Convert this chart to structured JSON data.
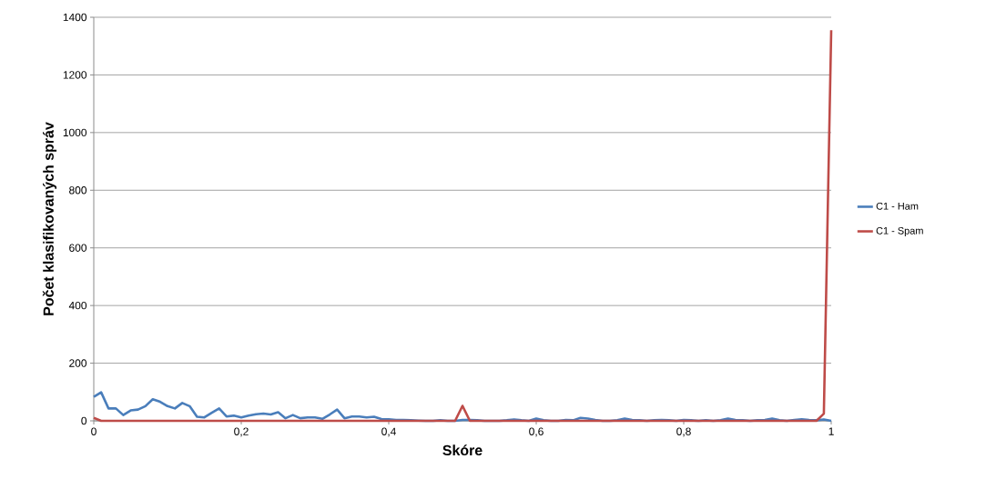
{
  "chart_data": {
    "type": "line",
    "xlabel": "Skóre",
    "ylabel": "Počet klasifikovaných správ",
    "x": [
      0,
      0.01,
      0.02,
      0.03,
      0.04,
      0.05,
      0.06,
      0.07,
      0.08,
      0.09,
      0.1,
      0.11,
      0.12,
      0.13,
      0.14,
      0.15,
      0.16,
      0.17,
      0.18,
      0.19,
      0.2,
      0.21,
      0.22,
      0.23,
      0.24,
      0.25,
      0.26,
      0.27,
      0.28,
      0.29,
      0.3,
      0.31,
      0.32,
      0.33,
      0.34,
      0.35,
      0.36,
      0.37,
      0.38,
      0.39,
      0.4,
      0.41,
      0.42,
      0.43,
      0.44,
      0.45,
      0.46,
      0.47,
      0.48,
      0.49,
      0.5,
      0.51,
      0.52,
      0.53,
      0.54,
      0.55,
      0.56,
      0.57,
      0.58,
      0.59,
      0.6,
      0.61,
      0.62,
      0.63,
      0.64,
      0.65,
      0.66,
      0.67,
      0.68,
      0.69,
      0.7,
      0.71,
      0.72,
      0.73,
      0.74,
      0.75,
      0.76,
      0.77,
      0.78,
      0.79,
      0.8,
      0.81,
      0.82,
      0.83,
      0.84,
      0.85,
      0.86,
      0.87,
      0.88,
      0.89,
      0.9,
      0.91,
      0.92,
      0.93,
      0.94,
      0.95,
      0.96,
      0.97,
      0.98,
      0.99,
      1
    ],
    "series": [
      {
        "name": "C1 - Ham",
        "color": "#4a7ebb",
        "values": [
          83,
          99,
          43,
          43,
          20,
          36,
          39,
          51,
          75,
          66,
          51,
          43,
          62,
          51,
          14,
          12,
          28,
          43,
          15,
          18,
          12,
          18,
          23,
          25,
          22,
          30,
          9,
          20,
          9,
          12,
          12,
          7,
          22,
          39,
          9,
          15,
          15,
          12,
          14,
          6,
          5,
          3,
          3,
          2,
          1,
          0,
          0,
          2,
          0,
          0,
          3,
          3,
          2,
          0,
          0,
          0,
          2,
          5,
          2,
          0,
          8,
          2,
          0,
          0,
          3,
          2,
          10,
          8,
          3,
          0,
          0,
          2,
          8,
          3,
          2,
          0,
          2,
          3,
          2,
          0,
          3,
          2,
          0,
          2,
          0,
          2,
          8,
          3,
          2,
          0,
          2,
          3,
          8,
          2,
          0,
          3,
          5,
          3,
          2,
          5,
          0
        ]
      },
      {
        "name": "C1 - Spam",
        "color": "#be4b48",
        "values": [
          10,
          0,
          0,
          0,
          0,
          0,
          0,
          0,
          0,
          0,
          0,
          0,
          0,
          0,
          0,
          0,
          0,
          0,
          0,
          0,
          0,
          0,
          0,
          0,
          0,
          0,
          0,
          0,
          0,
          0,
          0,
          0,
          0,
          0,
          0,
          0,
          0,
          0,
          0,
          0,
          0,
          0,
          0,
          0,
          0,
          0,
          0,
          0,
          0,
          0,
          52,
          0,
          0,
          0,
          0,
          0,
          0,
          0,
          0,
          0,
          0,
          0,
          0,
          0,
          0,
          0,
          0,
          0,
          0,
          0,
          0,
          0,
          0,
          0,
          0,
          0,
          0,
          0,
          0,
          0,
          0,
          0,
          0,
          0,
          0,
          0,
          0,
          0,
          0,
          0,
          0,
          0,
          0,
          0,
          0,
          0,
          0,
          0,
          0,
          25,
          1355
        ]
      }
    ],
    "xlim": [
      0,
      1
    ],
    "xticks": [
      {
        "value": 0,
        "label": "0"
      },
      {
        "value": 0.2,
        "label": "0,2"
      },
      {
        "value": 0.4,
        "label": "0,4"
      },
      {
        "value": 0.6,
        "label": "0,6"
      },
      {
        "value": 0.8,
        "label": "0,8"
      },
      {
        "value": 1,
        "label": "1"
      }
    ],
    "ylim": [
      0,
      1400
    ],
    "yticks": [
      0,
      200,
      400,
      600,
      800,
      1000,
      1200,
      1400
    ],
    "grid": "y",
    "legend": "right",
    "marker": "none",
    "line_style": "solid"
  }
}
